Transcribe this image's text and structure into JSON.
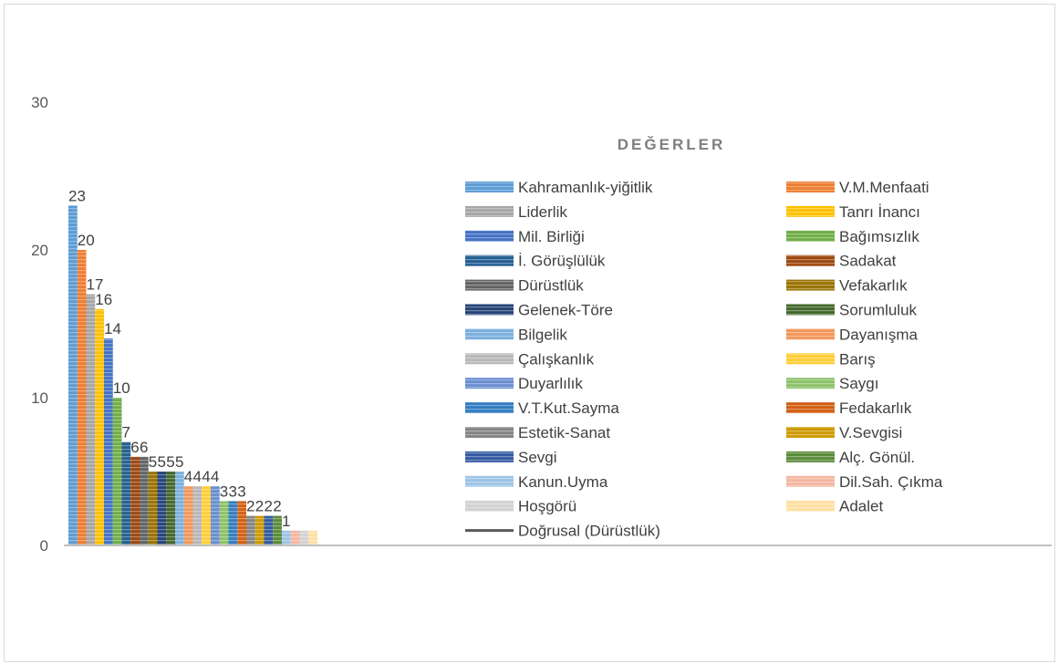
{
  "chart_data": {
    "type": "bar",
    "title": "DEĞERLER",
    "ylim": [
      0,
      30
    ],
    "yticks": [
      "0",
      "10",
      "20",
      "30"
    ],
    "grid": false,
    "legend_position": "right",
    "trendline_label": "Doğrusal (Dürüstlük)",
    "series": [
      {
        "name": "Kahramanlık-yiğitlik",
        "value": 23,
        "label": "23",
        "color": "#5b9bd5"
      },
      {
        "name": "V.M.Menfaati",
        "value": 20,
        "label": "20",
        "color": "#ed7d31"
      },
      {
        "name": "Liderlik",
        "value": 17,
        "label": "17",
        "color": "#a5a5a5"
      },
      {
        "name": "Tanrı İnancı",
        "value": 16,
        "label": "16",
        "color": "#ffc000"
      },
      {
        "name": "Mil. Birliği",
        "value": 14,
        "label": "14",
        "color": "#4472c4"
      },
      {
        "name": "Bağımsızlık",
        "value": 10,
        "label": "10",
        "color": "#70ad47"
      },
      {
        "name": "İ. Görüşlülük",
        "value": 7,
        "label": "7",
        "color": "#255e91"
      },
      {
        "name": "Sadakat",
        "value": 6,
        "label": "6",
        "color": "#9e480e"
      },
      {
        "name": "Dürüstlük",
        "value": 6,
        "label": "6",
        "color": "#636363"
      },
      {
        "name": "Vefakarlık",
        "value": 5,
        "label": "5",
        "color": "#997300"
      },
      {
        "name": "Gelenek-Töre",
        "value": 5,
        "label": "5",
        "color": "#264478"
      },
      {
        "name": "Sorumluluk",
        "value": 5,
        "label": "5",
        "color": "#43682b"
      },
      {
        "name": "Bilgelik",
        "value": 5,
        "label": "5",
        "color": "#7cafdd"
      },
      {
        "name": "Dayanışma",
        "value": 4,
        "label": "4",
        "color": "#f1975a"
      },
      {
        "name": "Çalışkanlık",
        "value": 4,
        "label": "4",
        "color": "#b7b7b7"
      },
      {
        "name": "Barış",
        "value": 4,
        "label": "4",
        "color": "#ffcd33"
      },
      {
        "name": "Duyarlılık",
        "value": 4,
        "label": "4",
        "color": "#698ed0"
      },
      {
        "name": "Saygı",
        "value": 3,
        "label": "3",
        "color": "#8cc168"
      },
      {
        "name": "V.T.Kut.Sayma",
        "value": 3,
        "label": "3",
        "color": "#327dc2"
      },
      {
        "name": "Fedakarlık",
        "value": 3,
        "label": "3",
        "color": "#d26012"
      },
      {
        "name": "Estetik-Sanat",
        "value": 2,
        "label": "2",
        "color": "#848484"
      },
      {
        "name": "V.Sevgisi",
        "value": 2,
        "label": "2",
        "color": "#cc9a00"
      },
      {
        "name": "Sevgi",
        "value": 2,
        "label": "2",
        "color": "#335aa1"
      },
      {
        "name": "Alç. Gönül.",
        "value": 2,
        "label": "2",
        "color": "#5a8b39"
      },
      {
        "name": "Kanun.Uyma",
        "value": 1,
        "label": "1",
        "color": "#9dc3e6"
      },
      {
        "name": "Dil.Sah. Çıkma",
        "value": 1,
        "label": "",
        "color": "#f4b6a1"
      },
      {
        "name": "Hoşgörü",
        "value": 1,
        "label": "",
        "color": "#d2d2d2"
      },
      {
        "name": "Adalet",
        "value": 1,
        "label": "",
        "color": "#ffe0a3"
      }
    ]
  }
}
